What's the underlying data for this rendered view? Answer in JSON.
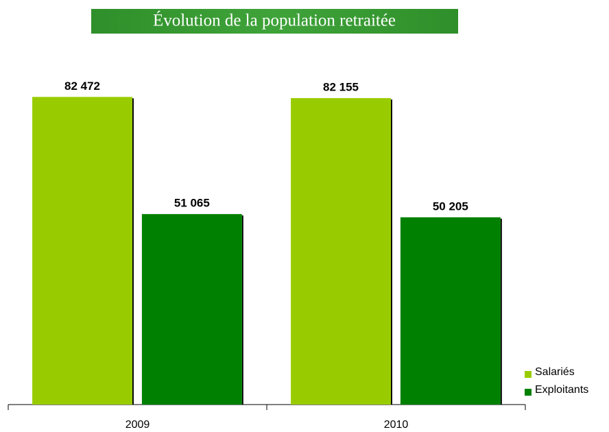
{
  "chart_data": {
    "type": "bar",
    "title": "Évolution de la population retraitée",
    "categories": [
      "2009",
      "2010"
    ],
    "series": [
      {
        "name": "Salariés",
        "color": "#99cc00",
        "values": [
          82472,
          82155
        ],
        "value_labels": [
          "82 472",
          "82 155"
        ]
      },
      {
        "name": "Exploitants",
        "color": "#008000",
        "values": [
          51065,
          50205
        ],
        "value_labels": [
          "51 065",
          "50 205"
        ]
      }
    ],
    "ylim": [
      0,
      100000
    ],
    "legend": "right"
  }
}
